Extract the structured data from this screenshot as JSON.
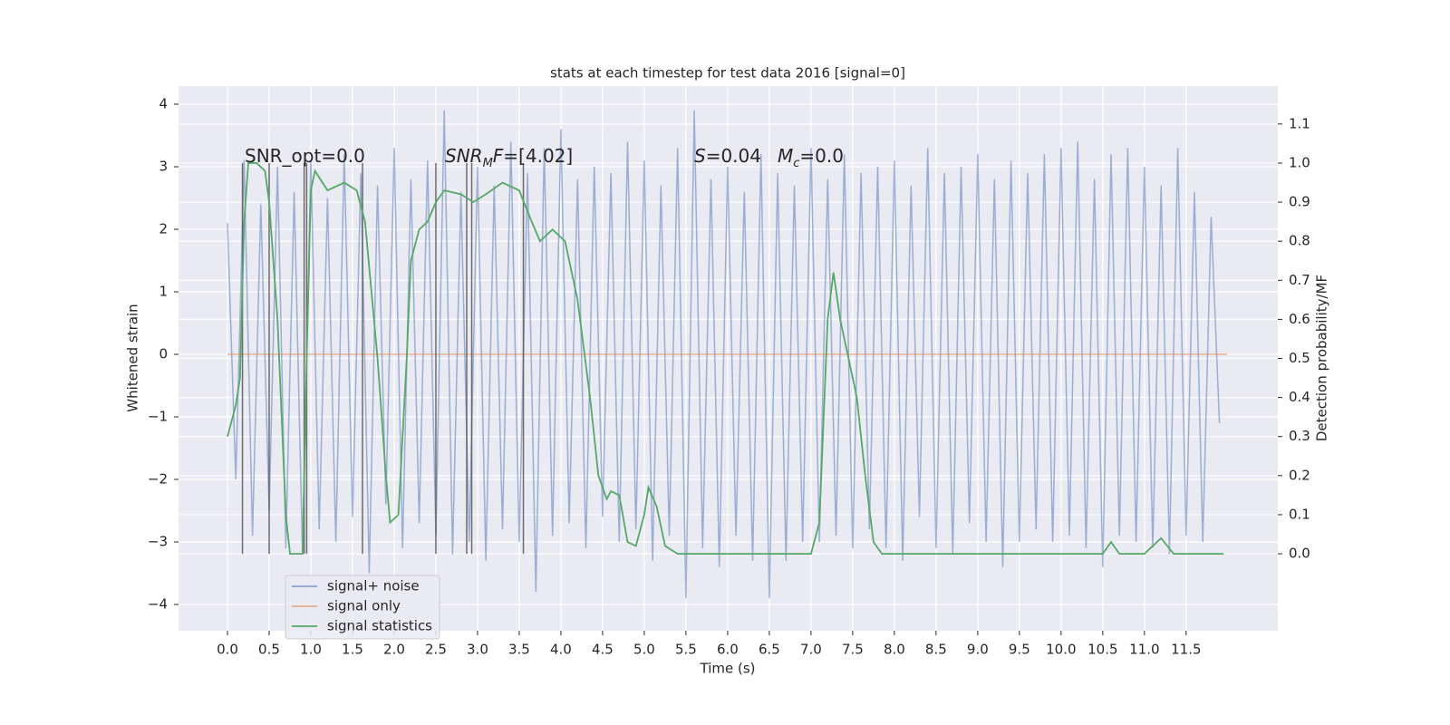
{
  "chart_data": {
    "type": "line",
    "title": "stats at each timestep for test data 2016 [signal=0]",
    "x_label": "Time (s)",
    "y_label": "Whitened strain",
    "y2_label": "Detection probability/MF",
    "grid": true,
    "legend": "lower left",
    "xlim": [
      -0.587,
      12.6
    ],
    "ylim": [
      -4.42,
      4.29
    ],
    "y2lim": [
      -0.197,
      1.197
    ],
    "xticks": [
      {
        "value": 0,
        "label": "0.0"
      },
      0.5,
      {
        "value": 1,
        "label": "1.0"
      },
      1.5,
      {
        "value": 2,
        "label": "2.0"
      },
      2.5,
      {
        "value": 3,
        "label": "3.0"
      },
      3.5,
      {
        "value": 4,
        "label": "4.0"
      },
      4.5,
      {
        "value": 5,
        "label": "5.0"
      },
      5.5,
      {
        "value": 6,
        "label": "6.0"
      },
      6.5,
      {
        "value": 7,
        "label": "7.0"
      },
      7.5,
      {
        "value": 8,
        "label": "8.0"
      },
      8.5,
      {
        "value": 9,
        "label": "9.0"
      },
      9.5,
      {
        "value": 10,
        "label": "10.0"
      },
      10.5,
      {
        "value": 11,
        "label": "11.0"
      },
      11.5
    ],
    "yticks": [
      {
        "value": -4,
        "label": "−4"
      },
      {
        "value": -3,
        "label": "−3"
      },
      {
        "value": -2,
        "label": "−2"
      },
      {
        "value": -1,
        "label": "−1"
      },
      0,
      1,
      2,
      3,
      4
    ],
    "y2ticks": [
      {
        "value": 0,
        "label": "0.0"
      },
      0.1,
      0.2,
      0.3,
      0.4,
      0.5,
      0.6,
      0.7,
      0.8,
      0.9,
      {
        "value": 1,
        "label": "1.0"
      },
      1.1
    ],
    "series": [
      {
        "name": "signal+ noise",
        "color": "#4c72b0",
        "x": [
          0.0,
          0.1,
          0.2,
          0.3,
          0.4,
          0.5,
          0.6,
          0.7,
          0.8,
          0.9,
          1.0,
          1.1,
          1.2,
          1.3,
          1.4,
          1.5,
          1.6,
          1.7,
          1.8,
          1.9,
          2.0,
          2.1,
          2.2,
          2.3,
          2.4,
          2.5,
          2.6,
          2.7,
          2.8,
          2.9,
          3.0,
          3.1,
          3.2,
          3.3,
          3.4,
          3.5,
          3.6,
          3.7,
          3.8,
          3.9,
          4.0,
          4.1,
          4.2,
          4.3,
          4.4,
          4.5,
          4.6,
          4.7,
          4.8,
          4.9,
          5.0,
          5.1,
          5.2,
          5.3,
          5.4,
          5.5,
          5.6,
          5.7,
          5.8,
          5.9,
          6.0,
          6.1,
          6.2,
          6.3,
          6.4,
          6.5,
          6.6,
          6.7,
          6.8,
          6.9,
          7.0,
          7.1,
          7.2,
          7.3,
          7.4,
          7.5,
          7.6,
          7.7,
          7.8,
          7.9,
          8.0,
          8.1,
          8.2,
          8.3,
          8.4,
          8.5,
          8.6,
          8.7,
          8.8,
          8.9,
          9.0,
          9.1,
          9.2,
          9.3,
          9.4,
          9.5,
          9.6,
          9.7,
          9.8,
          9.9,
          10.0,
          10.1,
          10.2,
          10.3,
          10.4,
          10.5,
          10.6,
          10.7,
          10.8,
          10.9,
          11.0,
          11.1,
          11.2,
          11.3,
          11.4,
          11.5,
          11.6,
          11.7,
          11.8,
          11.9
        ],
        "values": [
          2.1,
          -2.0,
          3.1,
          -2.9,
          2.4,
          -2.5,
          3.0,
          -3.1,
          2.6,
          -3.2,
          3.1,
          -2.8,
          2.5,
          -3.0,
          3.2,
          -2.6,
          2.9,
          -3.5,
          2.7,
          -2.4,
          3.3,
          -3.1,
          2.8,
          -2.7,
          3.1,
          -2.9,
          3.9,
          -3.2,
          2.6,
          -3.0,
          3.0,
          -3.3,
          2.7,
          -2.8,
          3.4,
          -3.0,
          2.9,
          -3.8,
          3.3,
          -2.9,
          3.6,
          -2.7,
          2.8,
          -3.1,
          3.0,
          -2.6,
          2.9,
          -3.0,
          3.4,
          -2.8,
          3.1,
          -3.3,
          2.7,
          -2.9,
          3.3,
          -3.9,
          3.9,
          -3.1,
          2.8,
          -3.4,
          3.0,
          -2.9,
          2.6,
          -3.3,
          3.2,
          -3.9,
          2.9,
          -3.3,
          2.7,
          -3.0,
          3.3,
          -3.0,
          2.8,
          -2.9,
          3.2,
          -3.1,
          2.9,
          -2.8,
          3.0,
          -3.1,
          3.1,
          -3.3,
          2.7,
          -2.6,
          3.3,
          -3.1,
          2.9,
          -3.2,
          3.0,
          -2.7,
          3.2,
          -3.0,
          2.8,
          -3.4,
          3.1,
          -3.0,
          2.9,
          -2.8,
          3.2,
          -3.0,
          3.3,
          -2.9,
          3.4,
          -3.1,
          2.8,
          -3.4,
          3.2,
          -2.9,
          3.3,
          -3.0,
          3.0,
          -3.1,
          2.7,
          -3.2,
          3.3,
          -2.9,
          2.6,
          -3.0,
          2.2,
          -1.1
        ]
      },
      {
        "name": "signal only",
        "color": "#dd8452",
        "x": [
          0.0,
          11.99
        ],
        "values": [
          0,
          0
        ]
      },
      {
        "name": "signal statistics",
        "color": "#55a868",
        "axis": "y2",
        "x": [
          0.0,
          0.1,
          0.15,
          0.2,
          0.25,
          0.35,
          0.45,
          0.5,
          0.6,
          0.7,
          0.75,
          0.9,
          0.95,
          1.0,
          1.05,
          1.2,
          1.4,
          1.55,
          1.65,
          1.8,
          1.9,
          1.95,
          2.05,
          2.15,
          2.2,
          2.3,
          2.4,
          2.5,
          2.6,
          2.8,
          2.95,
          3.1,
          3.3,
          3.5,
          3.65,
          3.75,
          3.9,
          4.05,
          4.2,
          4.35,
          4.45,
          4.55,
          4.6,
          4.7,
          4.8,
          4.9,
          5.0,
          5.05,
          5.15,
          5.25,
          5.4,
          6.0,
          7.0,
          7.1,
          7.2,
          7.27,
          7.35,
          7.45,
          7.55,
          7.65,
          7.75,
          7.85,
          8.1,
          10.5,
          10.6,
          10.7,
          11.0,
          11.2,
          11.35,
          11.8,
          11.95
        ],
        "values": [
          0.3,
          0.38,
          0.45,
          0.85,
          1.0,
          1.0,
          0.98,
          0.9,
          0.6,
          0.1,
          0.0,
          0.0,
          0.5,
          0.93,
          0.98,
          0.93,
          0.95,
          0.93,
          0.85,
          0.5,
          0.2,
          0.08,
          0.1,
          0.5,
          0.75,
          0.83,
          0.85,
          0.9,
          0.93,
          0.92,
          0.9,
          0.92,
          0.95,
          0.93,
          0.85,
          0.8,
          0.83,
          0.8,
          0.65,
          0.4,
          0.2,
          0.14,
          0.16,
          0.15,
          0.03,
          0.02,
          0.1,
          0.17,
          0.12,
          0.02,
          0.0,
          0.0,
          0.0,
          0.08,
          0.6,
          0.72,
          0.6,
          0.5,
          0.4,
          0.2,
          0.03,
          0.0,
          0.0,
          0.0,
          0.03,
          0.0,
          0.0,
          0.04,
          0.0,
          0.0,
          0.0
        ]
      }
    ],
    "event_lines": {
      "color": "#555555",
      "x": [
        0.18,
        0.5,
        0.92,
        0.95,
        1.62,
        2.5,
        2.87,
        2.93,
        3.55
      ],
      "y2range": [
        0,
        1.0
      ]
    },
    "annotations": [
      {
        "parts": [
          {
            "text": "SNR_opt=0.0"
          }
        ]
      },
      {
        "parts": [
          {
            "text": "SNR",
            "italic": true
          },
          {
            "text": "M",
            "italic": true,
            "sub": true
          },
          {
            "text": "F",
            "italic": true
          },
          {
            "text": "=[4.02]"
          }
        ]
      },
      {
        "parts": [
          {
            "text": "S",
            "italic": true
          },
          {
            "text": "=0.04"
          }
        ]
      },
      {
        "parts": [
          {
            "text": "M",
            "italic": true
          },
          {
            "text": "c",
            "italic": true,
            "sub": true
          },
          {
            "text": "=0.0"
          }
        ]
      }
    ]
  }
}
